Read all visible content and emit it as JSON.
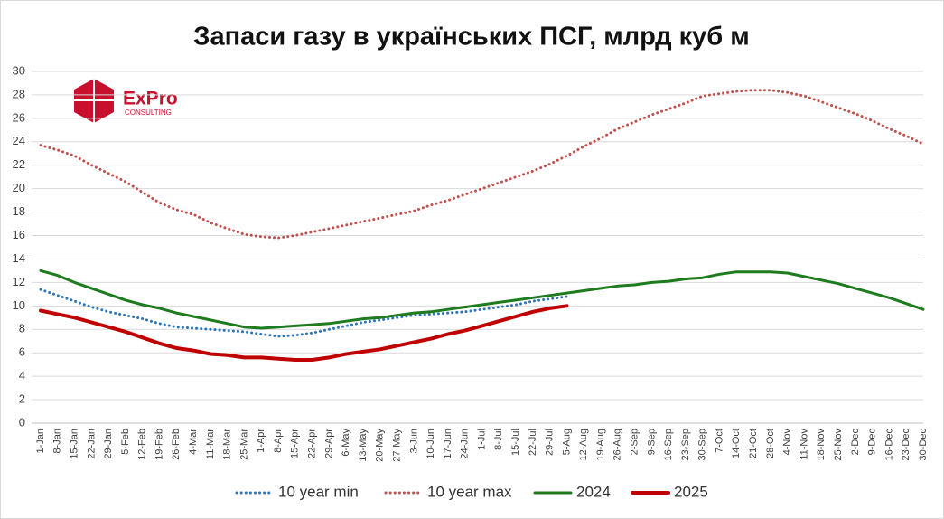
{
  "chart_data": {
    "type": "line",
    "title": "Запаси газу в українських ПСГ, млрд куб м",
    "logo": {
      "name": "ExPro",
      "subtitle": "CONSULTING",
      "color": "#c8102e"
    },
    "categories": [
      "1-Jan",
      "8-Jan",
      "15-Jan",
      "22-Jan",
      "29-Jan",
      "5-Feb",
      "12-Feb",
      "19-Feb",
      "26-Feb",
      "4-Mar",
      "11-Mar",
      "18-Mar",
      "25-Mar",
      "1-Apr",
      "8-Apr",
      "15-Apr",
      "22-Apr",
      "29-Apr",
      "6-May",
      "13-May",
      "20-May",
      "27-May",
      "3-Jun",
      "10-Jun",
      "17-Jun",
      "24-Jun",
      "1-Jul",
      "8-Jul",
      "15-Jul",
      "22-Jul",
      "29-Jul",
      "5-Aug",
      "12-Aug",
      "19-Aug",
      "26-Aug",
      "2-Sep",
      "9-Sep",
      "16-Sep",
      "23-Sep",
      "30-Sep",
      "7-Oct",
      "14-Oct",
      "21-Oct",
      "28-Oct",
      "4-Nov",
      "11-Nov",
      "18-Nov",
      "25-Nov",
      "2-Dec",
      "9-Dec",
      "16-Dec",
      "23-Dec",
      "30-Dec"
    ],
    "series": [
      {
        "name": "10 year min",
        "color": "#2e75b6",
        "style": "dotted",
        "values": [
          11.4,
          10.9,
          10.4,
          9.9,
          9.5,
          9.2,
          8.9,
          8.5,
          8.2,
          8.1,
          8.0,
          7.9,
          7.8,
          7.6,
          7.4,
          7.5,
          7.7,
          8.0,
          8.3,
          8.6,
          8.8,
          9.0,
          9.2,
          9.3,
          9.4,
          9.5,
          9.7,
          9.9,
          10.1,
          10.4,
          10.6,
          10.8,
          null,
          null,
          null,
          null,
          null,
          null,
          null,
          null,
          null,
          null,
          null,
          null,
          null,
          null,
          null,
          null,
          null,
          null,
          null,
          null,
          null
        ]
      },
      {
        "name": "10 year max",
        "color": "#c0504d",
        "style": "dotted",
        "values": [
          23.7,
          23.3,
          22.8,
          22.0,
          21.3,
          20.6,
          19.7,
          18.8,
          18.2,
          17.8,
          17.1,
          16.6,
          16.1,
          15.9,
          15.8,
          16.0,
          16.3,
          16.6,
          16.9,
          17.2,
          17.5,
          17.8,
          18.1,
          18.6,
          19.0,
          19.5,
          20.0,
          20.5,
          21.0,
          21.5,
          22.1,
          22.8,
          23.6,
          24.3,
          25.1,
          25.7,
          26.3,
          26.8,
          27.3,
          27.9,
          28.1,
          28.3,
          28.4,
          28.4,
          28.2,
          27.9,
          27.4,
          26.9,
          26.4,
          25.8,
          25.1,
          24.5,
          23.8
        ]
      },
      {
        "name": "2024",
        "color": "#1e7b1e",
        "style": "solid",
        "values": [
          13.0,
          12.6,
          12.0,
          11.5,
          11.0,
          10.5,
          10.1,
          9.8,
          9.4,
          9.1,
          8.8,
          8.5,
          8.2,
          8.1,
          8.2,
          8.3,
          8.4,
          8.5,
          8.7,
          8.9,
          9.0,
          9.2,
          9.4,
          9.5,
          9.7,
          9.9,
          10.1,
          10.3,
          10.5,
          10.7,
          10.9,
          11.1,
          11.3,
          11.5,
          11.7,
          11.8,
          12.0,
          12.1,
          12.3,
          12.4,
          12.7,
          12.9,
          12.9,
          12.9,
          12.8,
          12.5,
          12.2,
          11.9,
          11.5,
          11.1,
          10.7,
          10.2,
          9.7
        ]
      },
      {
        "name": "2025",
        "color": "#c00000",
        "style": "solid",
        "values": [
          9.6,
          9.3,
          9.0,
          8.6,
          8.2,
          7.8,
          7.3,
          6.8,
          6.4,
          6.2,
          5.9,
          5.8,
          5.6,
          5.6,
          5.5,
          5.4,
          5.4,
          5.6,
          5.9,
          6.1,
          6.3,
          6.6,
          6.9,
          7.2,
          7.6,
          7.9,
          8.3,
          8.7,
          9.1,
          9.5,
          9.8,
          10.0,
          null,
          null,
          null,
          null,
          null,
          null,
          null,
          null,
          null,
          null,
          null,
          null,
          null,
          null,
          null,
          null,
          null,
          null,
          null,
          null,
          null
        ]
      }
    ],
    "ylim": [
      0,
      30
    ],
    "yticks": [
      0,
      2,
      4,
      6,
      8,
      10,
      12,
      14,
      16,
      18,
      20,
      22,
      24,
      26,
      28,
      30
    ],
    "grid": true,
    "legend": "bottom"
  }
}
